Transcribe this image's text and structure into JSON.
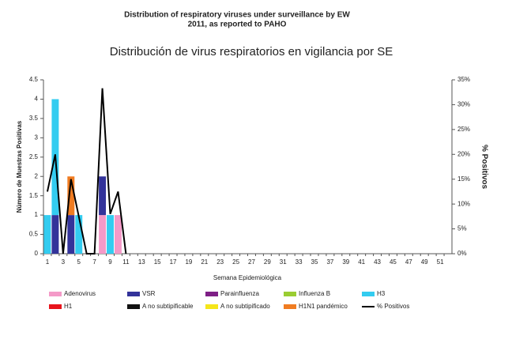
{
  "header": {
    "line1": "Distribution of respiratory viruses under surveillance by EW",
    "line2": "2011, as reported to PAHO"
  },
  "chart_data": {
    "type": "bar",
    "title": "Distribución de virus respiratorios en vigilancia por SE",
    "x_label": "Semana Epidemiológica",
    "y_label": "Número de Muestras Positivas",
    "y2_label": "% Positivos",
    "categories": [
      1,
      null,
      3,
      null,
      5,
      null,
      7,
      null,
      9,
      null,
      11,
      null,
      13,
      null,
      15,
      null,
      17,
      null,
      19,
      null,
      21,
      null,
      23,
      null,
      25,
      null,
      27,
      null,
      29,
      null,
      31,
      null,
      33,
      null,
      35,
      null,
      37,
      null,
      39,
      null,
      41,
      null,
      43,
      null,
      45,
      null,
      47,
      null,
      49,
      null,
      51,
      null
    ],
    "ylim": [
      0,
      4.5
    ],
    "yticks": [
      0,
      0.5,
      1,
      1.5,
      2,
      2.5,
      3,
      3.5,
      4,
      4.5
    ],
    "y2lim": [
      0,
      35
    ],
    "y2ticks": [
      {
        "value": 0,
        "label": "0%"
      },
      {
        "value": 5,
        "label": "5%"
      },
      {
        "value": 10,
        "label": "10%"
      },
      {
        "value": 15,
        "label": "15%"
      },
      {
        "value": 20,
        "label": "20%"
      },
      {
        "value": 25,
        "label": "25%"
      },
      {
        "value": 30,
        "label": "30%"
      },
      {
        "value": 35,
        "label": "35%"
      }
    ],
    "stacked": true,
    "series": [
      {
        "name": "Adenovirus",
        "color": "#f49ac8",
        "values": [
          0,
          0,
          0,
          0,
          0,
          0,
          0,
          1,
          0,
          1,
          0,
          0,
          0,
          0,
          0,
          0,
          0,
          0,
          0,
          0,
          0,
          0,
          0,
          0,
          0,
          0,
          0,
          0,
          0,
          0,
          0,
          0,
          0,
          0,
          0,
          0,
          0,
          0,
          0,
          0,
          0,
          0,
          0,
          0,
          0,
          0,
          0,
          0,
          0,
          0,
          0,
          0
        ]
      },
      {
        "name": "VSR",
        "color": "#33339a",
        "values": [
          0,
          1,
          0,
          1,
          0,
          0,
          0,
          1,
          0,
          0,
          0,
          0,
          0,
          0,
          0,
          0,
          0,
          0,
          0,
          0,
          0,
          0,
          0,
          0,
          0,
          0,
          0,
          0,
          0,
          0,
          0,
          0,
          0,
          0,
          0,
          0,
          0,
          0,
          0,
          0,
          0,
          0,
          0,
          0,
          0,
          0,
          0,
          0,
          0,
          0,
          0,
          0
        ]
      },
      {
        "name": "Parainfluenza",
        "color": "#7e1f86",
        "values": [
          0,
          0,
          0,
          0,
          0,
          0,
          0,
          0,
          0,
          0,
          0,
          0,
          0,
          0,
          0,
          0,
          0,
          0,
          0,
          0,
          0,
          0,
          0,
          0,
          0,
          0,
          0,
          0,
          0,
          0,
          0,
          0,
          0,
          0,
          0,
          0,
          0,
          0,
          0,
          0,
          0,
          0,
          0,
          0,
          0,
          0,
          0,
          0,
          0,
          0,
          0,
          0
        ]
      },
      {
        "name": "Influenza  B",
        "color": "#9acd32",
        "values": [
          0,
          0,
          0,
          0,
          0,
          0,
          0,
          0,
          0,
          0,
          0,
          0,
          0,
          0,
          0,
          0,
          0,
          0,
          0,
          0,
          0,
          0,
          0,
          0,
          0,
          0,
          0,
          0,
          0,
          0,
          0,
          0,
          0,
          0,
          0,
          0,
          0,
          0,
          0,
          0,
          0,
          0,
          0,
          0,
          0,
          0,
          0,
          0,
          0,
          0,
          0,
          0
        ]
      },
      {
        "name": "H3",
        "color": "#33ccf0",
        "values": [
          1,
          3,
          0,
          0,
          1,
          0,
          0,
          0,
          1,
          0,
          0,
          0,
          0,
          0,
          0,
          0,
          0,
          0,
          0,
          0,
          0,
          0,
          0,
          0,
          0,
          0,
          0,
          0,
          0,
          0,
          0,
          0,
          0,
          0,
          0,
          0,
          0,
          0,
          0,
          0,
          0,
          0,
          0,
          0,
          0,
          0,
          0,
          0,
          0,
          0,
          0,
          0
        ]
      },
      {
        "name": "H1",
        "color": "#e8141c",
        "values": [
          0,
          0,
          0,
          0,
          0,
          0,
          0,
          0,
          0,
          0,
          0,
          0,
          0,
          0,
          0,
          0,
          0,
          0,
          0,
          0,
          0,
          0,
          0,
          0,
          0,
          0,
          0,
          0,
          0,
          0,
          0,
          0,
          0,
          0,
          0,
          0,
          0,
          0,
          0,
          0,
          0,
          0,
          0,
          0,
          0,
          0,
          0,
          0,
          0,
          0,
          0,
          0
        ]
      },
      {
        "name": "A no subtipificable",
        "color": "#111111",
        "values": [
          0,
          0,
          0,
          0,
          0,
          0,
          0,
          0,
          0,
          0,
          0,
          0,
          0,
          0,
          0,
          0,
          0,
          0,
          0,
          0,
          0,
          0,
          0,
          0,
          0,
          0,
          0,
          0,
          0,
          0,
          0,
          0,
          0,
          0,
          0,
          0,
          0,
          0,
          0,
          0,
          0,
          0,
          0,
          0,
          0,
          0,
          0,
          0,
          0,
          0,
          0,
          0
        ]
      },
      {
        "name": "A no subtipificado",
        "color": "#f5e61a",
        "values": [
          0,
          0,
          0,
          0,
          0,
          0,
          0,
          0,
          0,
          0,
          0,
          0,
          0,
          0,
          0,
          0,
          0,
          0,
          0,
          0,
          0,
          0,
          0,
          0,
          0,
          0,
          0,
          0,
          0,
          0,
          0,
          0,
          0,
          0,
          0,
          0,
          0,
          0,
          0,
          0,
          0,
          0,
          0,
          0,
          0,
          0,
          0,
          0,
          0,
          0,
          0,
          0
        ]
      },
      {
        "name": "H1N1 pandémico",
        "color": "#f07c22",
        "values": [
          0,
          0,
          0,
          1,
          0,
          0,
          0,
          0,
          0,
          0,
          0,
          0,
          0,
          0,
          0,
          0,
          0,
          0,
          0,
          0,
          0,
          0,
          0,
          0,
          0,
          0,
          0,
          0,
          0,
          0,
          0,
          0,
          0,
          0,
          0,
          0,
          0,
          0,
          0,
          0,
          0,
          0,
          0,
          0,
          0,
          0,
          0,
          0,
          0,
          0,
          0,
          0
        ]
      },
      {
        "name": "% Positivos",
        "color": "#000000",
        "type": "line",
        "axis": "y2",
        "values": [
          12.5,
          20,
          0,
          15,
          7.5,
          0,
          0,
          33.3,
          8,
          12.5,
          0,
          null,
          null,
          null,
          null,
          null,
          null,
          null,
          null,
          null,
          null,
          null,
          null,
          null,
          null,
          null,
          null,
          null,
          null,
          null,
          null,
          null,
          null,
          null,
          null,
          null,
          null,
          null,
          null,
          null,
          null,
          null,
          null,
          null,
          null,
          null,
          null,
          null,
          null,
          null,
          null,
          null
        ]
      }
    ]
  }
}
